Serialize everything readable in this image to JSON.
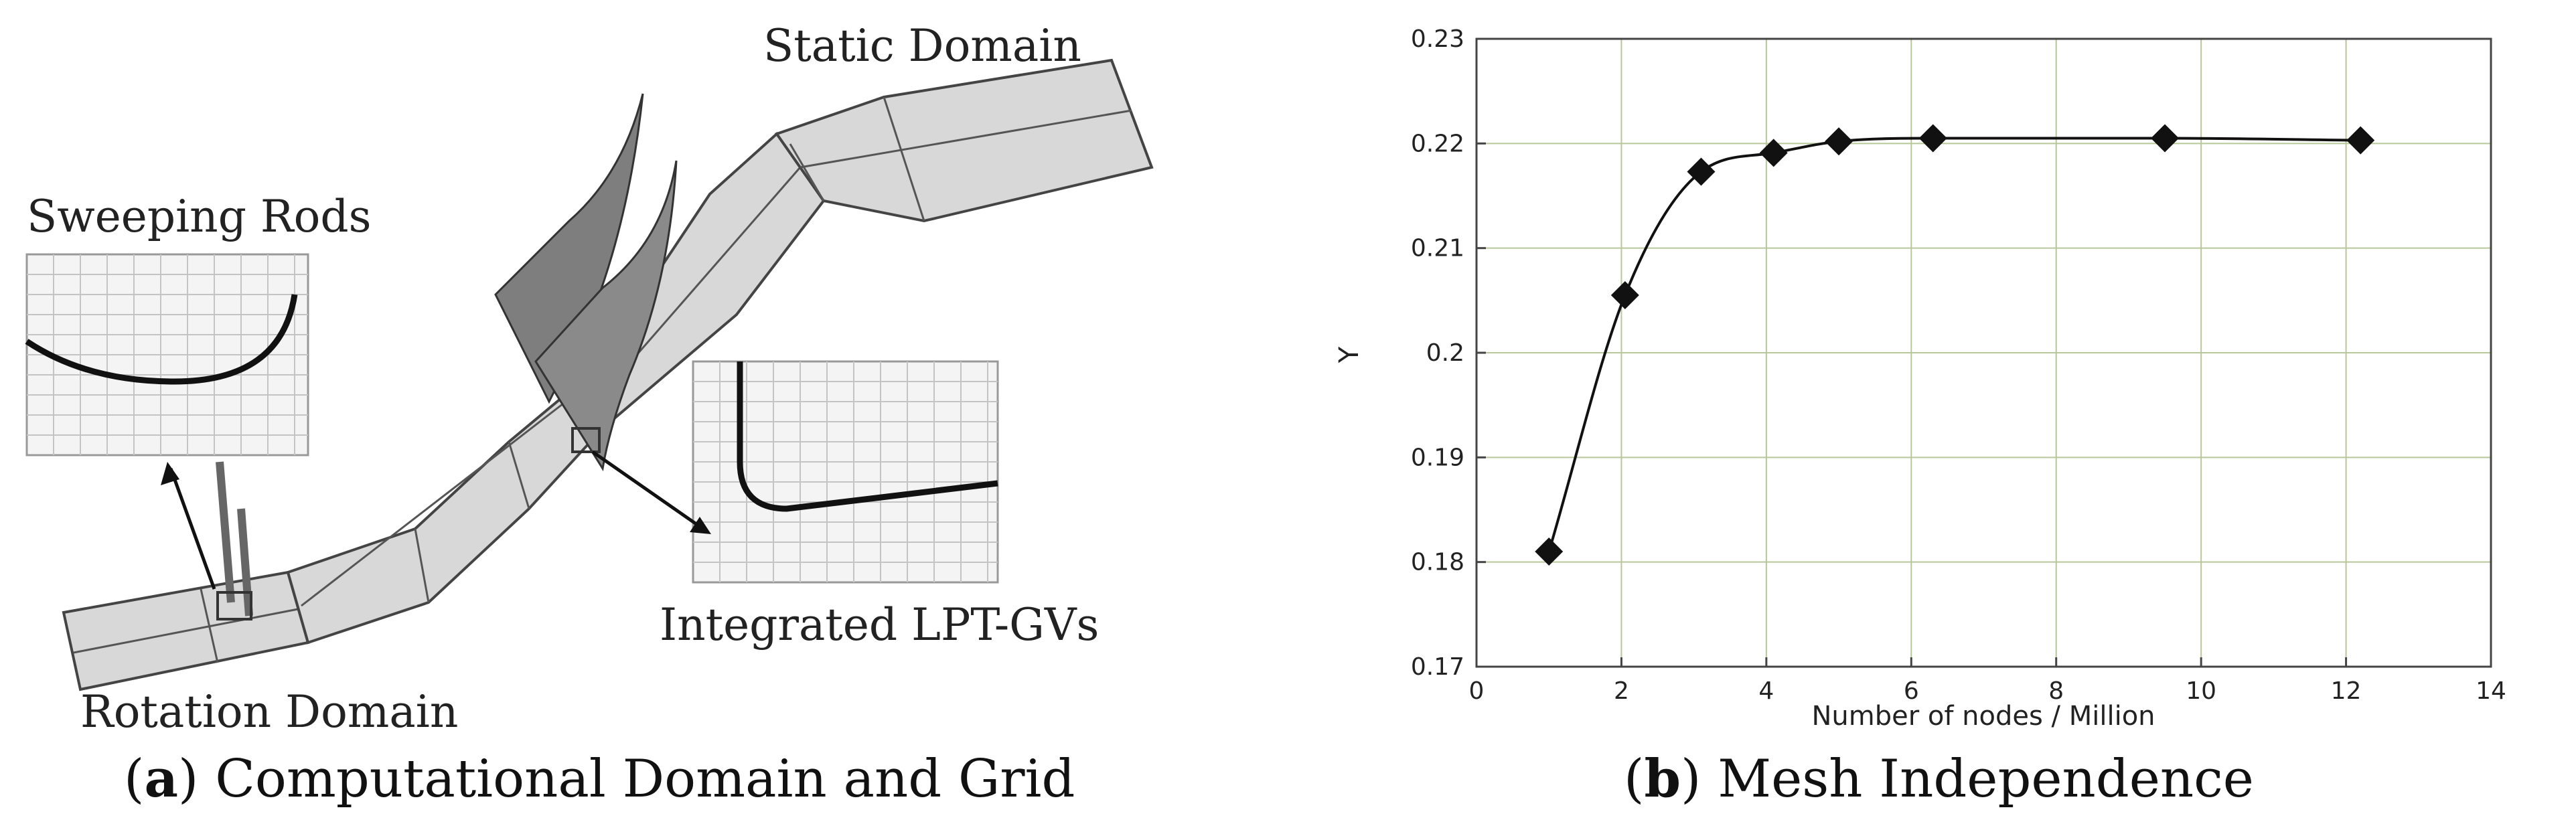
{
  "panel_a": {
    "labels": {
      "static_domain": "Static Domain",
      "sweeping_rods": "Sweeping Rods",
      "integrated": "Integrated LPT-GVs",
      "rotation_domain": "Rotation Domain"
    },
    "caption": {
      "letter": "a",
      "text": "Computational Domain and Grid"
    },
    "colors": {
      "duct": "#d8d8d8",
      "vane": "#7e7e7e",
      "edge": "#444444"
    }
  },
  "panel_b": {
    "caption": {
      "letter": "b",
      "text": "Mesh Independence"
    },
    "chart_data": {
      "type": "line",
      "xlabel": "Number of nodes / Million",
      "ylabel": "Y",
      "xlim": [
        0,
        14
      ],
      "ylim": [
        0.17,
        0.23
      ],
      "x_ticks": [
        "0",
        "2",
        "4",
        "6",
        "8",
        "10",
        "12",
        "14"
      ],
      "y_ticks": [
        "0.17",
        "0.18",
        "0.19",
        "0.2",
        "0.21",
        "0.22",
        "0.23"
      ],
      "grid": true,
      "marker": "diamond",
      "line_color": "#111111",
      "grid_color": "#b8c79a",
      "series": [
        {
          "x": [
            1.0,
            2.05,
            3.1,
            4.1,
            5.0,
            6.3,
            9.5,
            12.2
          ],
          "y": [
            0.181,
            0.2055,
            0.2173,
            0.2191,
            0.2202,
            0.2205,
            0.2205,
            0.2203
          ]
        }
      ]
    }
  }
}
